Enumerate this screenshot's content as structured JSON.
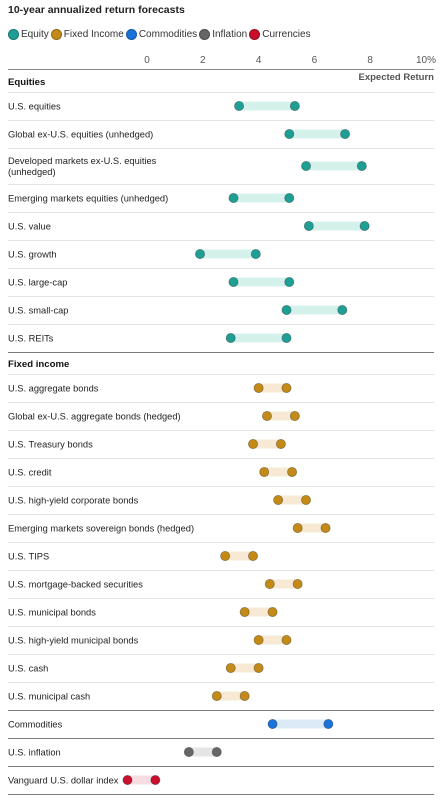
{
  "title": "10-year annualized return forecasts",
  "legend": [
    {
      "name": "Equity",
      "color": "#1f9e94"
    },
    {
      "name": "Fixed Income",
      "color": "#c48a17"
    },
    {
      "name": "Commodities",
      "color": "#1a73d9"
    },
    {
      "name": "Inflation",
      "color": "#666666"
    },
    {
      "name": "Currencies",
      "color": "#c8102e"
    }
  ],
  "chart_data": {
    "type": "range-dot",
    "title": "10-year annualized return forecasts",
    "xlabel": "Expected Return",
    "x_ticks": [
      "0",
      "2",
      "4",
      "6",
      "8",
      "10%"
    ],
    "xlim": [
      0,
      10
    ],
    "band_colors": {
      "Equity": "#d5f1ec",
      "Fixed Income": "#f7e9d3",
      "Commodities": "#dceaf8",
      "Inflation": "#e5e5e5",
      "Currencies": "#f7dde1"
    },
    "sections": [
      {
        "name": "Equities",
        "series": "Equity",
        "rows": [
          {
            "label": "U.S. equities",
            "low": 3.3,
            "high": 5.3
          },
          {
            "label": "Global ex-U.S. equities (unhedged)",
            "low": 5.1,
            "high": 7.1
          },
          {
            "label": "Developed markets ex-U.S. equities (unhedged)",
            "low": 5.7,
            "high": 7.7
          },
          {
            "label": "Emerging markets equities (unhedged)",
            "low": 3.1,
            "high": 5.1
          },
          {
            "label": "U.S. value",
            "low": 5.8,
            "high": 7.8
          },
          {
            "label": "U.S. growth",
            "low": 1.9,
            "high": 3.9
          },
          {
            "label": "U.S. large-cap",
            "low": 3.1,
            "high": 5.1
          },
          {
            "label": "U.S. small-cap",
            "low": 5.0,
            "high": 7.0
          },
          {
            "label": "U.S. REITs",
            "low": 3.0,
            "high": 5.0
          }
        ]
      },
      {
        "name": "Fixed income",
        "series": "Fixed Income",
        "rows": [
          {
            "label": "U.S. aggregate bonds",
            "low": 4.0,
            "high": 5.0
          },
          {
            "label": "Global ex-U.S. aggregate bonds (hedged)",
            "low": 4.3,
            "high": 5.3
          },
          {
            "label": "U.S. Treasury bonds",
            "low": 3.8,
            "high": 4.8
          },
          {
            "label": "U.S. credit",
            "low": 4.2,
            "high": 5.2
          },
          {
            "label": "U.S. high-yield corporate bonds",
            "low": 4.7,
            "high": 5.7
          },
          {
            "label": "Emerging markets sovereign bonds (hedged)",
            "low": 5.4,
            "high": 6.4
          },
          {
            "label": "U.S. TIPS",
            "low": 2.8,
            "high": 3.8
          },
          {
            "label": "U.S. mortgage-backed securities",
            "low": 4.4,
            "high": 5.4
          },
          {
            "label": "U.S. municipal bonds",
            "low": 3.5,
            "high": 4.5
          },
          {
            "label": "U.S. high-yield municipal bonds",
            "low": 4.0,
            "high": 5.0
          },
          {
            "label": "U.S. cash",
            "low": 3.0,
            "high": 4.0
          },
          {
            "label": "U.S. municipal cash",
            "low": 2.5,
            "high": 3.5
          }
        ]
      },
      {
        "name": "",
        "series": "Commodities",
        "rows": [
          {
            "label": "Commodities",
            "low": 4.5,
            "high": 6.5
          }
        ]
      },
      {
        "name": "",
        "series": "Inflation",
        "rows": [
          {
            "label": "U.S. inflation",
            "low": 1.5,
            "high": 2.5
          }
        ]
      },
      {
        "name": "",
        "series": "Currencies",
        "rows": [
          {
            "label": "Vanguard U.S. dollar index",
            "low": -0.7,
            "high": 0.3
          }
        ]
      }
    ]
  }
}
